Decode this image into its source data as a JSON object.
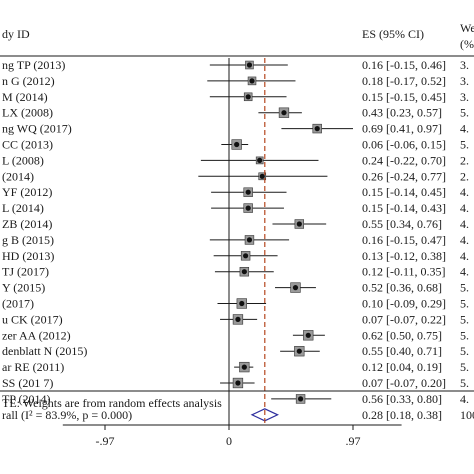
{
  "chart_data": {
    "type": "forest",
    "title": "",
    "header": {
      "study_col": "dy ID",
      "es_col": "ES (95% CI)",
      "weight_col_top": "We",
      "weight_col_bottom": "(%"
    },
    "xlim": [
      -1.3,
      1.35
    ],
    "xticks": [
      {
        "value": -0.97,
        "label": "-.97"
      },
      {
        "value": 0,
        "label": "0"
      },
      {
        "value": 0.97,
        "label": ".97"
      }
    ],
    "reference_line": 0,
    "overall_line": 0.28,
    "studies": [
      {
        "label": "ng TP (2013)",
        "es": 0.16,
        "lo": -0.15,
        "hi": 0.46,
        "ci_text": "0.16 [-0.15, 0.46]",
        "weight": "3."
      },
      {
        "label": "n G (2012)",
        "es": 0.18,
        "lo": -0.17,
        "hi": 0.52,
        "ci_text": "0.18 [-0.17, 0.52]",
        "weight": "3."
      },
      {
        "label": "M (2014)",
        "es": 0.15,
        "lo": -0.15,
        "hi": 0.45,
        "ci_text": "0.15 [-0.15, 0.45]",
        "weight": "3."
      },
      {
        "label": "LX (2008)",
        "es": 0.43,
        "lo": 0.23,
        "hi": 0.57,
        "ci_text": "0.43 [0.23, 0.57]",
        "weight": "5."
      },
      {
        "label": "ng WQ (2017)",
        "es": 0.69,
        "lo": 0.41,
        "hi": 0.97,
        "ci_text": "0.69 [0.41, 0.97]",
        "weight": "4."
      },
      {
        "label": "CC (2013)",
        "es": 0.06,
        "lo": -0.06,
        "hi": 0.15,
        "ci_text": "0.06 [-0.06, 0.15]",
        "weight": "5."
      },
      {
        "label": "L (2008)",
        "es": 0.24,
        "lo": -0.22,
        "hi": 0.7,
        "ci_text": "0.24 [-0.22, 0.70]",
        "weight": "2."
      },
      {
        "label": "(2014)",
        "es": 0.26,
        "lo": -0.24,
        "hi": 0.77,
        "ci_text": "0.26 [-0.24, 0.77]",
        "weight": "2."
      },
      {
        "label": "YF (2012)",
        "es": 0.15,
        "lo": -0.14,
        "hi": 0.45,
        "ci_text": "0.15 [-0.14, 0.45]",
        "weight": "4."
      },
      {
        "label": "L (2014)",
        "es": 0.15,
        "lo": -0.14,
        "hi": 0.43,
        "ci_text": "0.15 [-0.14, 0.43]",
        "weight": "4."
      },
      {
        "label": "ZB (2014)",
        "es": 0.55,
        "lo": 0.34,
        "hi": 0.76,
        "ci_text": "0.55 [0.34, 0.76]",
        "weight": "4."
      },
      {
        "label": "g B (2015)",
        "es": 0.16,
        "lo": -0.15,
        "hi": 0.47,
        "ci_text": "0.16 [-0.15, 0.47]",
        "weight": "4."
      },
      {
        "label": "HD (2013)",
        "es": 0.13,
        "lo": -0.12,
        "hi": 0.38,
        "ci_text": "0.13 [-0.12, 0.38]",
        "weight": "4."
      },
      {
        "label": "TJ (2017)",
        "es": 0.12,
        "lo": -0.11,
        "hi": 0.35,
        "ci_text": "0.12 [-0.11, 0.35]",
        "weight": "4."
      },
      {
        "label": "Y (2015)",
        "es": 0.52,
        "lo": 0.36,
        "hi": 0.68,
        "ci_text": "0.52 [0.36, 0.68]",
        "weight": "5."
      },
      {
        "label": "(2017)",
        "es": 0.1,
        "lo": -0.09,
        "hi": 0.29,
        "ci_text": "0.10 [-0.09, 0.29]",
        "weight": "5."
      },
      {
        "label": "u CK (2017)",
        "es": 0.07,
        "lo": -0.07,
        "hi": 0.22,
        "ci_text": "0.07 [-0.07, 0.22]",
        "weight": "5."
      },
      {
        "label": "zer AA (2012)",
        "es": 0.62,
        "lo": 0.5,
        "hi": 0.75,
        "ci_text": "0.62 [0.50, 0.75]",
        "weight": "5."
      },
      {
        "label": "denblatt N (2015)",
        "es": 0.55,
        "lo": 0.4,
        "hi": 0.71,
        "ci_text": "0.55 [0.40, 0.71]",
        "weight": "5."
      },
      {
        "label": "ar RE (2011)",
        "es": 0.12,
        "lo": 0.04,
        "hi": 0.19,
        "ci_text": "0.12 [0.04, 0.19]",
        "weight": "5."
      },
      {
        "label": "SS (201 7)",
        "es": 0.07,
        "lo": -0.07,
        "hi": 0.2,
        "ci_text": "0.07 [-0.07, 0.20]",
        "weight": "5."
      },
      {
        "label": "TP (2014)",
        "es": 0.56,
        "lo": 0.33,
        "hi": 0.8,
        "ci_text": "0.56 [0.33, 0.80]",
        "weight": "4."
      }
    ],
    "overall": {
      "label": "rall (I² = 83.9%, p = 0.000)",
      "es": 0.28,
      "lo": 0.18,
      "hi": 0.38,
      "ci_text": "0.28 [0.18, 0.38]",
      "weight": "100"
    },
    "note": "TE: Weights are from random effects analysis",
    "colors": {
      "ink": "#1a1a1a",
      "marker": "#333333",
      "overall_line": "#b5471f",
      "diamond": "#2e2e9e"
    }
  }
}
